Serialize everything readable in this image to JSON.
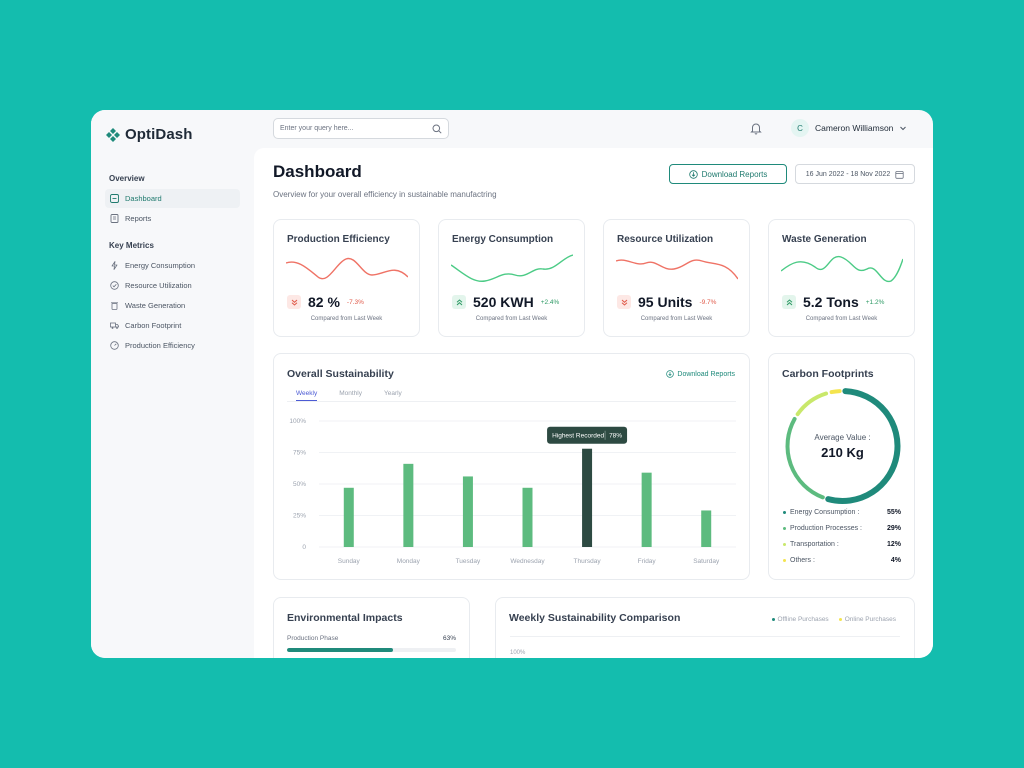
{
  "app": {
    "name": "OptiDash"
  },
  "search": {
    "placeholder": "Enter your query here..."
  },
  "user": {
    "initial": "C",
    "name": "Cameron Williamson"
  },
  "sidebar": {
    "overview_label": "Overview",
    "overview_items": [
      {
        "label": "Dashboard",
        "icon": "dashboard-icon",
        "active": true
      },
      {
        "label": "Reports",
        "icon": "reports-icon"
      }
    ],
    "metrics_label": "Key Metrics",
    "metrics_items": [
      {
        "label": "Energy Consumption",
        "icon": "lightning-icon"
      },
      {
        "label": "Resource Utilization",
        "icon": "gauge-icon"
      },
      {
        "label": "Waste Generation",
        "icon": "trash-icon"
      },
      {
        "label": "Carbon Footprint",
        "icon": "truck-icon"
      },
      {
        "label": "Production Efficiency",
        "icon": "speedometer-icon"
      }
    ]
  },
  "header": {
    "title": "Dashboard",
    "subtitle": "Overview for your overall efficiency in sustainable manufactring",
    "download_label": "Download Reports",
    "date_range": "16 Jun 2022 - 18 Nov 2022"
  },
  "metrics": [
    {
      "title": "Production Efficiency",
      "value": "82 %",
      "change": "-7.3%",
      "trend": "down",
      "note": "Compared from Last Week",
      "color": "#EF7366"
    },
    {
      "title": "Energy Consumption",
      "value": "520 KWH",
      "change": "+2.4%",
      "trend": "up",
      "note": "Compared from Last Week",
      "color": "#4CCB86"
    },
    {
      "title": "Resource Utilization",
      "value": "95 Units",
      "change": "-9.7%",
      "trend": "down",
      "note": "Compared from Last Week",
      "color": "#EF7366"
    },
    {
      "title": "Waste Generation",
      "value": "5.2 Tons",
      "change": "+1.2%",
      "trend": "up",
      "note": "Compared from Last Week",
      "color": "#4CCB86"
    }
  ],
  "sustainability": {
    "title": "Overall Sustainability",
    "download_label": "Download Reports",
    "tabs": [
      "Weekly",
      "Monthly",
      "Yearly"
    ],
    "active_tab": "Weekly",
    "tooltip_label": "Highest Recorded",
    "tooltip_value": "78%",
    "bar_color": "#5DBB7F",
    "highlight_color": "#2D4A42"
  },
  "chart_data": {
    "type": "bar",
    "categories": [
      "Sunday",
      "Monday",
      "Tuesday",
      "Wednesday",
      "Thursday",
      "Friday",
      "Saturday"
    ],
    "values": [
      47,
      66,
      56,
      47,
      78,
      59,
      29
    ],
    "highlight_index": 4,
    "ylim": [
      0,
      100
    ],
    "yticks": [
      "100%",
      "75%",
      "50%",
      "25%",
      "0"
    ],
    "grid": true
  },
  "carbon": {
    "title": "Carbon Footprints",
    "center_label": "Average Value :",
    "center_value": "210 Kg",
    "items": [
      {
        "label": "Energy Consumption :",
        "value": "55%",
        "color": "#1F8A7B"
      },
      {
        "label": "Production Processes :",
        "value": "29%",
        "color": "#5DBB7F"
      },
      {
        "label": "Transportation :",
        "value": "12%",
        "color": "#C9E86B"
      },
      {
        "label": "Others :",
        "value": "4%",
        "color": "#F4E44E"
      }
    ]
  },
  "environment": {
    "title": "Environmental Impacts",
    "item_label": "Production Phase",
    "item_value": "63%",
    "item_fraction": 0.63
  },
  "weekly": {
    "title": "Weekly Sustainability Comparison",
    "legend": [
      {
        "label": "Offline Purchases",
        "color": "#1F8A7B"
      },
      {
        "label": "Online Purchases",
        "color": "#F4E44E"
      }
    ],
    "axis_top": "100%"
  }
}
